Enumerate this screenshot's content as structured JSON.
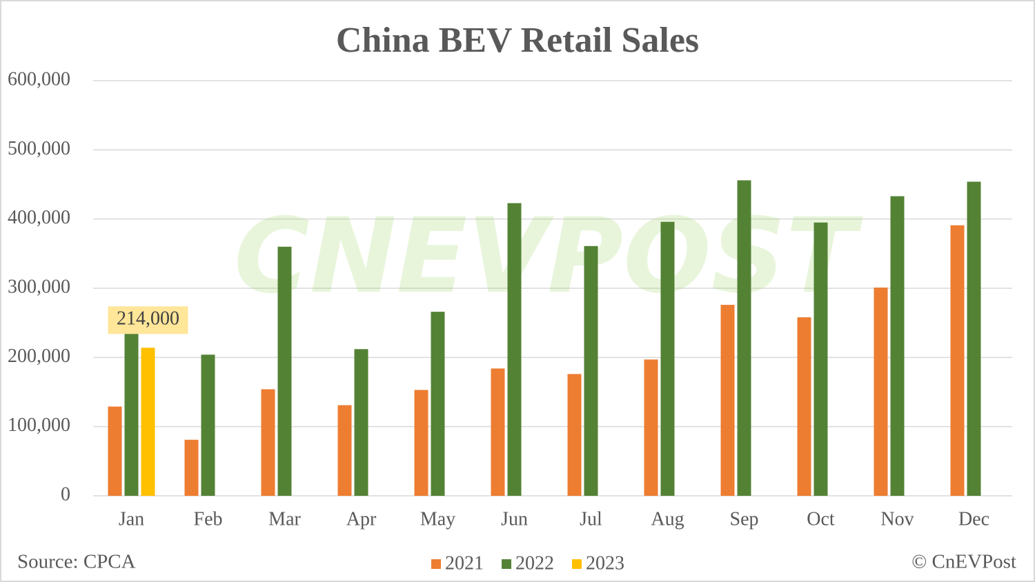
{
  "chart_data": {
    "type": "bar",
    "title": "China BEV Retail Sales",
    "categories": [
      "Jan",
      "Feb",
      "Mar",
      "Apr",
      "May",
      "Jun",
      "Jul",
      "Aug",
      "Sep",
      "Oct",
      "Nov",
      "Dec"
    ],
    "series": [
      {
        "name": "2021",
        "color": "#ed7d31",
        "values": [
          129000,
          81000,
          154000,
          131000,
          153000,
          184000,
          176000,
          197000,
          276000,
          258000,
          301000,
          391000
        ]
      },
      {
        "name": "2022",
        "color": "#548235",
        "values": [
          267000,
          204000,
          360000,
          212000,
          266000,
          423000,
          361000,
          396000,
          456000,
          395000,
          433000,
          454000
        ]
      },
      {
        "name": "2023",
        "color": "#ffc000",
        "values": [
          214000,
          null,
          null,
          null,
          null,
          null,
          null,
          null,
          null,
          null,
          null,
          null
        ],
        "value_labels": [
          "214,000",
          null,
          null,
          null,
          null,
          null,
          null,
          null,
          null,
          null,
          null,
          null
        ]
      }
    ],
    "ylim": [
      0,
      600000
    ],
    "yticks": [
      0,
      {
        "value": 100000,
        "label": "100,000"
      },
      {
        "value": 200000,
        "label": "200,000"
      },
      {
        "value": 300000,
        "label": "300,000"
      },
      {
        "value": 400000,
        "label": "400,000"
      },
      {
        "value": 500000,
        "label": "500,000"
      },
      {
        "value": 600000,
        "label": "600,000"
      }
    ],
    "grid": true,
    "legend": "bottom",
    "source": "Source: CPCA",
    "credit": "© CnEVPost",
    "watermark": "CNEVPOST"
  }
}
